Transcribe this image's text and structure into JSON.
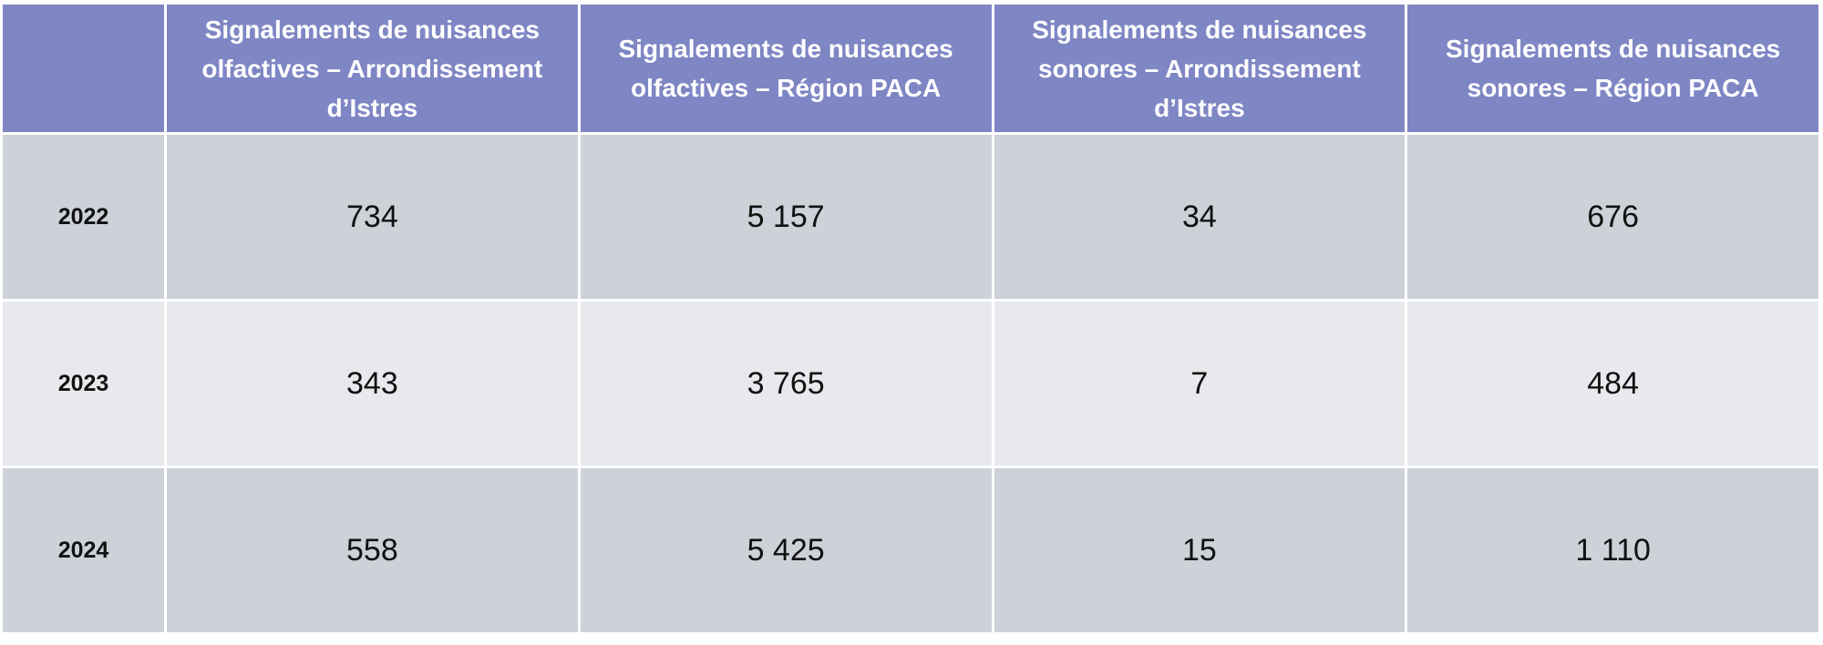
{
  "table": {
    "columns": [
      "Signalements de nuisances olfactives – Arrondissement d’Istres",
      "Signalements de nuisances olfactives – Région PACA",
      "Signalements de nuisances sonores – Arrondissement d’Istres",
      "Signalements de nuisances sonores – Région PACA"
    ],
    "rows": [
      [
        "2022",
        "734",
        "5 157",
        "34",
        "676"
      ],
      [
        "2023",
        "343",
        "3 765",
        "7",
        "484"
      ],
      [
        "2024",
        "558",
        "5 425",
        "15",
        "1 110"
      ]
    ]
  }
}
